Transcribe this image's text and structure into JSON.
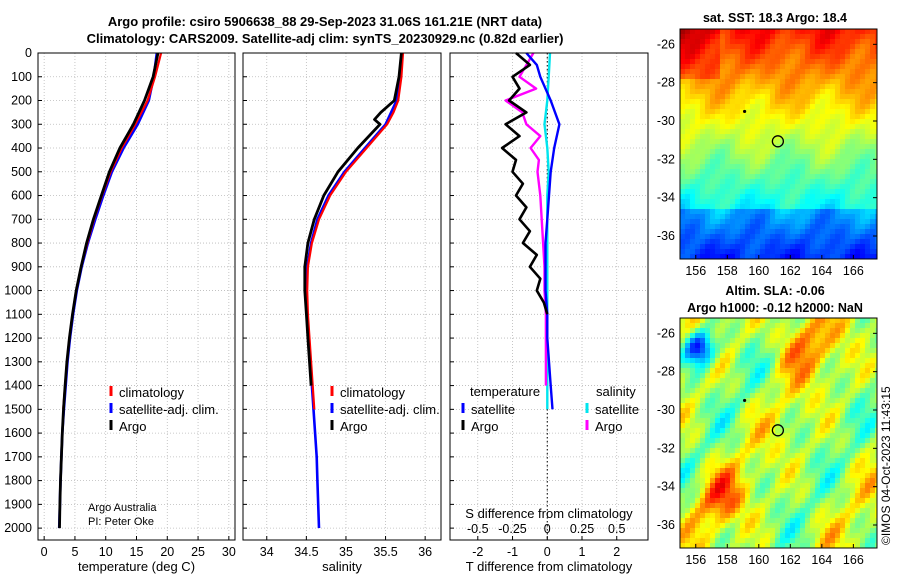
{
  "header": {
    "line1": "Argo profile: csiro 5906638_88 29-Sep-2023 31.06S 161.21E (NRT data)",
    "line2": "Climatology: CARS2009. Satellite-adj clim: synTS_20230929.nc (0.82d earlier)"
  },
  "credit": "©IMOS 04-Oct-2023 11:43:15",
  "colors": {
    "climatology": "#ff0000",
    "satellite": "#0000ff",
    "argo": "#000000",
    "sat_diff_salinity": "#00e5ee",
    "argo_diff_salinity": "#ff00ff"
  },
  "chart_data": [
    {
      "id": "temperature",
      "type": "line",
      "xlabel": "temperature (deg C)",
      "ylabel": "",
      "xlim": [
        -1,
        31
      ],
      "ylim": [
        2050,
        0
      ],
      "xticks": [
        0,
        5,
        10,
        15,
        20,
        25,
        30
      ],
      "yticks": [
        0,
        100,
        200,
        300,
        400,
        500,
        600,
        700,
        800,
        900,
        1000,
        1100,
        1200,
        1300,
        1400,
        1500,
        1600,
        1700,
        1800,
        1900,
        2000
      ],
      "grid": true,
      "legend": [
        "climatology",
        "satellite-adj. clim.",
        "Argo"
      ],
      "note_lines": [
        "Argo Australia",
        "PI: Peter Oke"
      ],
      "series": [
        {
          "name": "climatology",
          "depth": [
            0,
            100,
            200,
            300,
            400,
            500,
            600,
            700,
            800,
            900,
            1000,
            1100,
            1200,
            1300,
            1400,
            1500
          ],
          "values": [
            19.0,
            18.0,
            16.8,
            14.8,
            12.6,
            10.8,
            9.4,
            8.1,
            7.0,
            6.0,
            5.2,
            4.6,
            4.1,
            3.7,
            3.4,
            3.1
          ]
        },
        {
          "name": "satellite-adj. clim.",
          "depth": [
            0,
            100,
            200,
            300,
            400,
            500,
            600,
            700,
            800,
            900,
            1000,
            1100,
            1200,
            1300,
            1400,
            1500,
            1600,
            1700,
            1800,
            1900,
            2000
          ],
          "values": [
            18.3,
            17.8,
            17.0,
            15.2,
            12.9,
            11.0,
            9.6,
            8.3,
            7.1,
            6.1,
            5.3,
            4.7,
            4.2,
            3.8,
            3.5,
            3.2,
            2.95,
            2.8,
            2.65,
            2.55,
            2.45
          ]
        },
        {
          "name": "Argo",
          "depth": [
            0,
            100,
            200,
            300,
            400,
            500,
            600,
            700,
            800,
            900,
            1000,
            1100,
            1200,
            1300,
            1400,
            1500,
            1600,
            1700,
            1800,
            1900,
            2000
          ],
          "values": [
            18.5,
            17.7,
            16.3,
            14.5,
            12.3,
            10.6,
            9.3,
            8.0,
            6.9,
            6.0,
            5.2,
            4.6,
            4.1,
            3.7,
            3.4,
            3.15,
            2.95,
            2.8,
            2.65,
            2.55,
            2.5
          ]
        }
      ]
    },
    {
      "id": "salinity",
      "type": "line",
      "xlabel": "salinity",
      "xlim": [
        33.7,
        36.2
      ],
      "ylim": [
        2050,
        0
      ],
      "xticks": [
        34,
        34.5,
        35,
        35.5,
        36
      ],
      "grid": true,
      "legend": [
        "climatology",
        "satellite-adj. clim.",
        "Argo"
      ],
      "series": [
        {
          "name": "climatology",
          "depth": [
            0,
            100,
            200,
            250,
            300,
            400,
            500,
            600,
            700,
            800,
            900,
            1000,
            1100,
            1200,
            1300,
            1400,
            1500
          ],
          "values": [
            35.72,
            35.7,
            35.66,
            35.6,
            35.52,
            35.26,
            35.0,
            34.8,
            34.66,
            34.57,
            34.52,
            34.51,
            34.52,
            34.54,
            34.56,
            34.58,
            34.6
          ]
        },
        {
          "name": "satellite-adj. clim.",
          "depth": [
            0,
            100,
            200,
            300,
            400,
            500,
            600,
            700,
            800,
            900,
            1000,
            1100,
            1200,
            1300,
            1400,
            1500,
            1600,
            1700,
            1800,
            1900,
            2000
          ],
          "values": [
            35.7,
            35.69,
            35.64,
            35.5,
            35.24,
            34.98,
            34.78,
            34.64,
            34.56,
            34.51,
            34.5,
            34.51,
            34.53,
            34.55,
            34.57,
            34.59,
            34.61,
            34.63,
            34.64,
            34.65,
            34.66
          ]
        },
        {
          "name": "Argo",
          "depth": [
            0,
            100,
            200,
            250,
            280,
            300,
            400,
            500,
            600,
            700,
            800,
            900,
            1000,
            1100,
            1200,
            1300,
            1400
          ],
          "values": [
            35.7,
            35.67,
            35.61,
            35.44,
            35.36,
            35.43,
            35.15,
            34.9,
            34.72,
            34.6,
            34.52,
            34.48,
            34.48,
            34.5,
            34.52,
            34.54,
            34.56
          ]
        }
      ]
    },
    {
      "id": "difference",
      "type": "line",
      "xlabel": "T difference from climatology",
      "xlabel_top": "S difference from climatology",
      "xlim": [
        -2.8,
        2.9
      ],
      "ylim": [
        2050,
        0
      ],
      "xticks": [
        -2,
        -1,
        0,
        1,
        2
      ],
      "xticks_salinity": [
        "-0.5",
        "-0.25",
        "0",
        "0.25",
        "0.5"
      ],
      "grid": true,
      "legend_temperature_title": "temperature",
      "legend_salinity_title": "salinity",
      "legend_entries": [
        "satellite",
        "Argo"
      ],
      "series": [
        {
          "name": "temperature satellite",
          "depth": [
            0,
            50,
            100,
            200,
            300,
            400,
            500,
            600,
            700,
            800,
            900,
            1000,
            1100,
            1200,
            1300,
            1400,
            1500
          ],
          "values": [
            -0.6,
            -0.3,
            -0.2,
            0.1,
            0.35,
            0.2,
            0.1,
            0.05,
            0.0,
            -0.05,
            -0.05,
            -0.05,
            0.0,
            0.0,
            0.05,
            0.1,
            0.15
          ]
        },
        {
          "name": "temperature Argo",
          "depth": [
            0,
            50,
            100,
            150,
            200,
            250,
            300,
            350,
            400,
            450,
            500,
            550,
            600,
            650,
            700,
            750,
            800,
            850,
            900,
            950,
            1000,
            1050,
            1100
          ],
          "values": [
            -0.9,
            -0.5,
            -1.0,
            -0.8,
            -1.1,
            -0.6,
            -1.2,
            -0.8,
            -1.3,
            -0.9,
            -1.0,
            -0.7,
            -0.9,
            -0.6,
            -0.8,
            -0.5,
            -0.7,
            -0.3,
            -0.5,
            -0.2,
            -0.3,
            -0.1,
            0.0
          ]
        },
        {
          "name": "salinity satellite",
          "depth": [
            0,
            100,
            200,
            300,
            400,
            500,
            600,
            700,
            800,
            900,
            1000,
            1100,
            1200,
            1300,
            1400,
            1500
          ],
          "values": [
            0.02,
            0.01,
            0.0,
            -0.02,
            0.0,
            0.01,
            0.0,
            0.0,
            0.0,
            0.0,
            0.0,
            0.0,
            0.0,
            0.0,
            0.0,
            0.0
          ]
        },
        {
          "name": "salinity Argo",
          "depth": [
            0,
            100,
            150,
            200,
            250,
            300,
            350,
            400,
            450,
            500,
            600,
            700,
            800,
            900,
            1000,
            1100,
            1200,
            1300,
            1400
          ],
          "values": [
            -0.1,
            -0.2,
            -0.08,
            -0.3,
            -0.18,
            -0.15,
            -0.05,
            -0.12,
            -0.06,
            -0.07,
            -0.05,
            -0.04,
            -0.03,
            -0.02,
            -0.02,
            -0.01,
            -0.01,
            -0.01,
            -0.01
          ]
        }
      ]
    },
    {
      "id": "sst_map",
      "type": "heatmap",
      "title": "sat. SST: 18.3 Argo: 18.4",
      "xlim": [
        155,
        167.5
      ],
      "ylim": [
        -37.2,
        -25.2
      ],
      "xticks": [
        156,
        158,
        160,
        162,
        164,
        166
      ],
      "yticks": [
        -26,
        -28,
        -30,
        -32,
        -34,
        -36
      ],
      "profile_lon": 161.21,
      "profile_lat": -31.06
    },
    {
      "id": "sla_map",
      "type": "heatmap",
      "title": "Altim. SLA: -0.06",
      "subtitle": "Argo h1000: -0.12 h2000: NaN",
      "xlim": [
        155,
        167.5
      ],
      "ylim": [
        -37.2,
        -25.2
      ],
      "xticks": [
        156,
        158,
        160,
        162,
        164,
        166
      ],
      "yticks": [
        -26,
        -28,
        -30,
        -32,
        -34,
        -36
      ],
      "profile_lon": 161.21,
      "profile_lat": -31.06
    }
  ]
}
